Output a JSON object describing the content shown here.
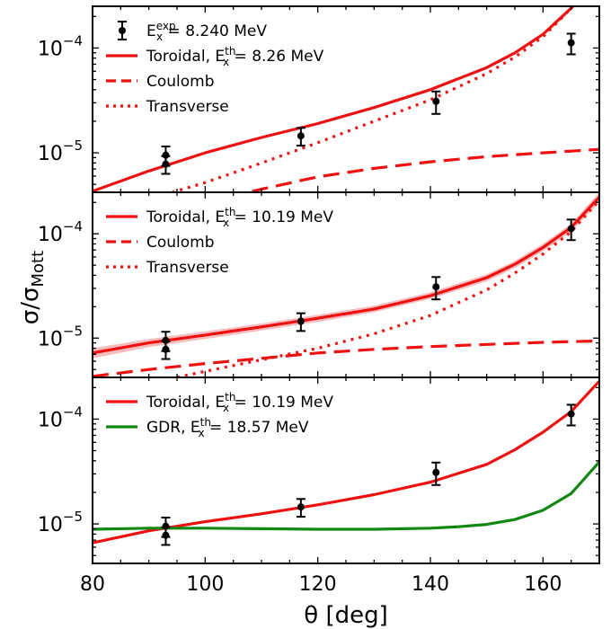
{
  "chart_data": {
    "type": "line",
    "xlabel": "θ [deg]",
    "ylabel": "σ/σ",
    "ylabel_sub": "Mott",
    "xlim": [
      80,
      170
    ],
    "ylim": [
      4.2e-06,
      0.00025
    ],
    "yscale": "log",
    "xticks": [
      "80",
      "100",
      "120",
      "140",
      "160"
    ],
    "ytick_base": "10",
    "yticks": [
      "−4",
      "−5"
    ],
    "colors": {
      "red": "#ee1111",
      "band": "#f4a6a6",
      "green": "#118811",
      "black": "#000000"
    },
    "experiment": {
      "x": [
        93,
        93,
        117,
        141,
        165
      ],
      "y": [
        9.5e-06,
        7.8e-06,
        1.45e-05,
        3.1e-05,
        0.000112
      ],
      "err": [
        2e-06,
        1.5e-06,
        2.8e-06,
        7.5e-06,
        2.5e-05
      ]
    },
    "panels": [
      {
        "legend": [
          {
            "style": "errorbar",
            "main": "E",
            "sub": "x",
            "sup": "exp",
            "rest": " = 8.240 MeV"
          },
          {
            "style": "solid",
            "main": "Toroidal, E",
            "sub": "x",
            "sup": "th",
            "rest": " = 8.26 MeV"
          },
          {
            "style": "dashed",
            "main": "Coulomb",
            "sub": "",
            "sup": "",
            "rest": ""
          },
          {
            "style": "dotted",
            "main": "Transverse",
            "sub": "",
            "sup": "",
            "rest": ""
          }
        ],
        "series": [
          {
            "style": "solid",
            "color": "red",
            "x": [
              80,
              90,
              100,
              110,
              120,
              130,
              140,
              150,
              155,
              160,
              165,
              170
            ],
            "y": [
              4.3e-06,
              6.7e-06,
              1e-05,
              1.4e-05,
              1.9e-05,
              2.7e-05,
              4e-05,
              6.5e-05,
              9e-05,
              0.000135,
              0.00024,
              0.0005
            ]
          },
          {
            "style": "dashed",
            "color": "red",
            "x": [
              100,
              110,
              120,
              130,
              140,
              150,
              160,
              170
            ],
            "y": [
              3.3e-06,
              4.5e-06,
              5.9e-06,
              7.1e-06,
              8.2e-06,
              9.2e-06,
              1e-05,
              1.08e-05
            ]
          },
          {
            "style": "dotted",
            "color": "red",
            "x": [
              90,
              100,
              110,
              120,
              130,
              140,
              150,
              155,
              160,
              165,
              170
            ],
            "y": [
              3.6e-06,
              5.2e-06,
              8e-06,
              1.25e-05,
              2e-05,
              3.2e-05,
              5.7e-05,
              8.2e-05,
              0.000128,
              0.00024,
              0.0005
            ]
          }
        ]
      },
      {
        "legend": [
          {
            "style": "solid",
            "main": "Toroidal, E",
            "sub": "x",
            "sup": "th",
            "rest": " = 10.19 MeV"
          },
          {
            "style": "dashed",
            "main": "Coulomb",
            "sub": "",
            "sup": "",
            "rest": ""
          },
          {
            "style": "dotted",
            "main": "Transverse",
            "sub": "",
            "sup": "",
            "rest": ""
          }
        ],
        "band": {
          "color": "band",
          "x": [
            80,
            90,
            100,
            110,
            120,
            130,
            140,
            150,
            155,
            160,
            165,
            170
          ],
          "lower": [
            6.4e-06,
            8.2e-06,
            9.8e-06,
            1.18e-05,
            1.43e-05,
            1.77e-05,
            2.38e-05,
            3.5e-05,
            4.7e-05,
            6.8e-05,
            0.000105,
            0.0002
          ],
          "upper": [
            8e-06,
            9.8e-06,
            1.16e-05,
            1.38e-05,
            1.67e-05,
            2.05e-05,
            2.75e-05,
            4.1e-05,
            5.5e-05,
            8e-05,
            0.000125,
            0.00025
          ]
        },
        "series": [
          {
            "style": "solid",
            "color": "red",
            "x": [
              80,
              90,
              100,
              110,
              120,
              130,
              140,
              150,
              155,
              160,
              165,
              170
            ],
            "y": [
              7.2e-06,
              9e-06,
              1.07e-05,
              1.28e-05,
              1.55e-05,
              1.9e-05,
              2.55e-05,
              3.8e-05,
              5.1e-05,
              7.4e-05,
              0.000115,
              0.000225
            ]
          },
          {
            "style": "dashed",
            "color": "red",
            "x": [
              80,
              90,
              100,
              110,
              120,
              130,
              140,
              150,
              160,
              170
            ],
            "y": [
              4.3e-06,
              5e-06,
              5.7e-06,
              6.4e-06,
              7.2e-06,
              7.8e-06,
              8.3e-06,
              8.7e-06,
              9.1e-06,
              9.4e-06
            ]
          },
          {
            "style": "dotted",
            "color": "red",
            "x": [
              95,
              100,
              110,
              120,
              130,
              140,
              150,
              155,
              160,
              165,
              170
            ],
            "y": [
              4.2e-06,
              4.8e-06,
              6.2e-06,
              8e-06,
              1.1e-05,
              1.65e-05,
              2.9e-05,
              4.2e-05,
              6.4e-05,
              0.000105,
              0.00021
            ]
          }
        ]
      },
      {
        "legend": [
          {
            "style": "solid",
            "main": "Toroidal, E",
            "sub": "x",
            "sup": "th",
            "rest": " = 10.19 MeV"
          },
          {
            "style": "solid-green",
            "main": "GDR, E",
            "sub": "x",
            "sup": "th",
            "rest": " = 18.57 MeV"
          }
        ],
        "series": [
          {
            "style": "solid",
            "color": "red",
            "x": [
              80,
              90,
              100,
              110,
              120,
              130,
              140,
              150,
              155,
              160,
              165,
              170
            ],
            "y": [
              6.6e-06,
              8.6e-06,
              1.05e-05,
              1.25e-05,
              1.52e-05,
              1.9e-05,
              2.5e-05,
              3.7e-05,
              5.1e-05,
              7.5e-05,
              0.000118,
              0.00023
            ]
          },
          {
            "style": "solid",
            "color": "green",
            "x": [
              80,
              90,
              100,
              110,
              120,
              130,
              140,
              145,
              150,
              155,
              160,
              165,
              170
            ],
            "y": [
              8.9e-06,
              9.1e-06,
              9.1e-06,
              9e-06,
              8.9e-06,
              8.9e-06,
              9.1e-06,
              9.4e-06,
              9.9e-06,
              1.1e-05,
              1.35e-05,
              1.95e-05,
              3.9e-05
            ]
          }
        ]
      }
    ]
  }
}
